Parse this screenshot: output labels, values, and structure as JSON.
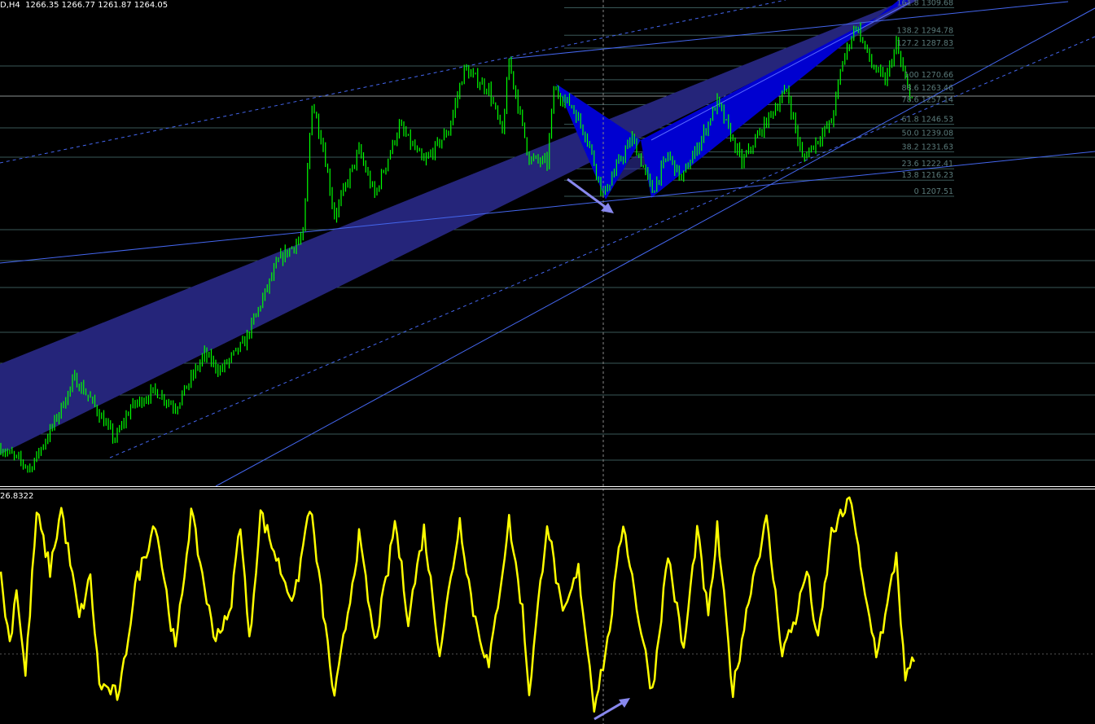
{
  "header": {
    "symbol": "D,H4",
    "open": "1266.35",
    "high": "1266.77",
    "low": "1261.87",
    "close": "1264.05"
  },
  "indicator": {
    "value_label": "26.8322"
  },
  "colors": {
    "bullish_bar": "#00ff00",
    "oscillator": "#ffff00",
    "trendline": "#4466ee",
    "channel": "#25257a",
    "pattern": "#0000d0",
    "grid": "#3a5858",
    "arrow": "#8888ee"
  },
  "chart_data": [
    {
      "type": "bar",
      "title": "D,H4",
      "ylim": [
        1050.3,
        1313.9
      ],
      "series": [
        {
          "bar": [
            0,
            13,
            22,
            33,
            40,
            51,
            58,
            69,
            78,
            91,
            98,
            109,
            124,
            135,
            139,
            144,
            149,
            160,
            167,
            178,
            189,
            200,
            207,
            218,
            224,
            227,
            236,
            244,
            247,
            255,
            262,
            269,
            276,
            282,
            291,
            298,
            304,
            313,
            320,
            331,
            344,
            351,
            358,
            371,
            376,
            382,
            389,
            395,
            400,
            404,
            407
          ],
          "close": [
            1071.0,
            1060.0,
            1079.9,
            1108.6,
            1097.5,
            1075.5,
            1093.1,
            1102.0,
            1093.1,
            1121.8,
            1113.0,
            1128.5,
            1172.6,
            1185.9,
            1258.7,
            1234.4,
            1196.9,
            1232.2,
            1207.9,
            1245.5,
            1225.6,
            1243.3,
            1276.4,
            1265.3,
            1241.1,
            1280.8,
            1227.8,
            1225.6,
            1265.3,
            1256.5,
            1238.9,
            1207.9,
            1225.6,
            1238.9,
            1210.1,
            1230.0,
            1216.8,
            1238.9,
            1258.7,
            1225.6,
            1252.1,
            1265.3,
            1227.8,
            1247.7,
            1280.8,
            1300.7,
            1278.6,
            1269.8,
            1289.6,
            1269.8,
            1260.9
          ]
        }
      ],
      "fibonacci": [
        {
          "level": "161.8",
          "price": "1309.68"
        },
        {
          "level": "138.2",
          "price": "1294.78"
        },
        {
          "level": "127.2",
          "price": "1287.83"
        },
        {
          "level": "100",
          "price": "1270.66"
        },
        {
          "level": "88.6",
          "price": "1263.46"
        },
        {
          "level": "78.6",
          "price": "1257.14"
        },
        {
          "level": "61.8",
          "price": "1246.53"
        },
        {
          "level": "50.0",
          "price": "1239.08"
        },
        {
          "level": "38.2",
          "price": "1231.63"
        },
        {
          "level": "23.6",
          "price": "1222.41"
        },
        {
          "level": "13.8",
          "price": "1216.23"
        },
        {
          "level": "0",
          "price": "1207.51"
        }
      ],
      "grid": false
    },
    {
      "type": "line",
      "ylim": [
        -12.1,
        28.4
      ],
      "zero_line": 0,
      "series": [
        {
          "bar": [
            0,
            4,
            7,
            11,
            16,
            22,
            27,
            35,
            40,
            44,
            53,
            60,
            69,
            78,
            85,
            95,
            102,
            107,
            111,
            116,
            125,
            131,
            138,
            144,
            149,
            160,
            167,
            173,
            176,
            182,
            189,
            196,
            205,
            211,
            218,
            227,
            233,
            236,
            244,
            251,
            258,
            265,
            271,
            278,
            285,
            291,
            298,
            305,
            311,
            316,
            320,
            327,
            335,
            342,
            349,
            355,
            360,
            365,
            371,
            380,
            385,
            391,
            395,
            400,
            404,
            407,
            408
          ],
          "value": [
            13.1,
            1.8,
            11.7,
            -3.8,
            24.4,
            14.5,
            25.1,
            6.1,
            13.1,
            -5.2,
            -7.3,
            11.7,
            23.0,
            0.4,
            24.4,
            3.2,
            6.1,
            23.0,
            1.8,
            24.4,
            14.5,
            8.9,
            25.8,
            7.5,
            -8.0,
            20.1,
            1.8,
            14.5,
            23.0,
            6.1,
            21.5,
            0.4,
            23.0,
            7.5,
            -2.4,
            23.0,
            7.5,
            -6.6,
            23.0,
            6.1,
            14.5,
            -8.7,
            1.8,
            23.0,
            6.1,
            -6.6,
            17.3,
            0.4,
            21.5,
            6.1,
            21.5,
            -6.6,
            11.7,
            23.0,
            0.4,
            6.1,
            14.5,
            1.8,
            20.8,
            26.8,
            11.7,
            0.4,
            6.1,
            17.3,
            -5.2,
            -1.0,
            -2.4
          ]
        }
      ]
    }
  ]
}
